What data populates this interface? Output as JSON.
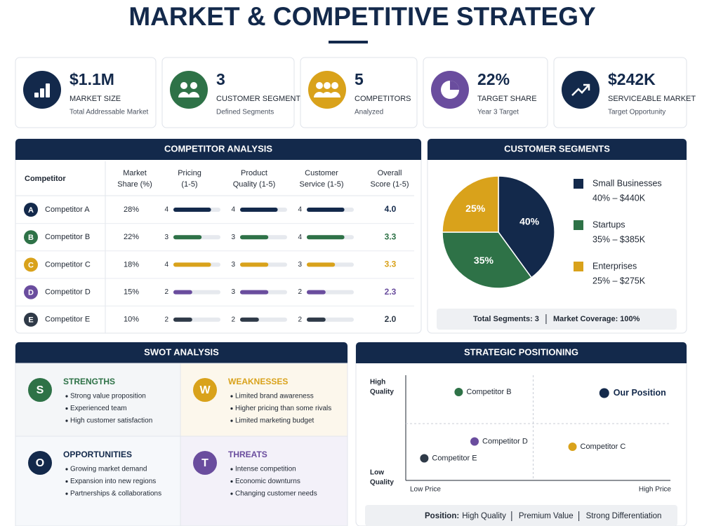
{
  "header": {
    "title": "MARKET & COMPETITIVE STRATEGY"
  },
  "kpis": [
    {
      "value": "$1.1M",
      "label": "MARKET SIZE",
      "sub": "Total Addressable Market",
      "color": "#13294b"
    },
    {
      "value": "3",
      "label": "CUSTOMER SEGMENTS",
      "sub": "Defined Segments",
      "color": "#2e7247"
    },
    {
      "value": "5",
      "label": "COMPETITORS",
      "sub": "Analyzed",
      "color": "#d9a21b"
    },
    {
      "value": "22%",
      "label": "TARGET SHARE",
      "sub": "Year 3 Target",
      "color": "#6a4d9e"
    },
    {
      "value": "$242K",
      "label": "SERVICEABLE MARKET",
      "sub": "Target Opportunity",
      "color": "#13294b"
    }
  ],
  "competitor_analysis": {
    "title": "COMPETITOR ANALYSIS",
    "columns": [
      [
        "Competitor"
      ],
      [
        "Market",
        "Share (%)"
      ],
      [
        "Pricing",
        "(1-5)"
      ],
      [
        "Product",
        "Quality (1-5)"
      ],
      [
        "Customer",
        "Service (1-5)"
      ],
      [
        "Overall",
        "Score (1-5)"
      ]
    ],
    "rating_range": [
      0,
      5
    ],
    "rows": [
      {
        "badge": "A",
        "name": "Competitor A",
        "share": "28%",
        "ratings": [
          4,
          4,
          4
        ],
        "overall": "4.0",
        "color": "#13294b"
      },
      {
        "badge": "B",
        "name": "Competitor B",
        "share": "22%",
        "ratings": [
          3,
          3,
          4
        ],
        "overall": "3.3",
        "color": "#2e7247"
      },
      {
        "badge": "C",
        "name": "Competitor C",
        "share": "18%",
        "ratings": [
          4,
          3,
          3
        ],
        "overall": "3.3",
        "color": "#d9a21b"
      },
      {
        "badge": "D",
        "name": "Competitor D",
        "share": "15%",
        "ratings": [
          2,
          3,
          2
        ],
        "overall": "2.3",
        "color": "#6a4d9e"
      },
      {
        "badge": "E",
        "name": "Competitor E",
        "share": "10%",
        "ratings": [
          2,
          2,
          2
        ],
        "overall": "2.0",
        "color": "#2f3a48"
      }
    ]
  },
  "customer_segments": {
    "title": "CUSTOMER SEGMENTS",
    "slices": [
      {
        "name": "Small Businesses",
        "value": 40,
        "value_label": "40%",
        "detail": "40% – $440K",
        "color": "#13294b"
      },
      {
        "name": "Startups",
        "value": 35,
        "value_label": "35%",
        "detail": "35% – $385K",
        "color": "#2e7247"
      },
      {
        "name": "Enterprises",
        "value": 25,
        "value_label": "25%",
        "detail": "25% – $275K",
        "color": "#d9a21b"
      }
    ],
    "footer": [
      "Total Segments: 3",
      "Market Coverage: 100%"
    ]
  },
  "swot": {
    "title": "SWOT ANALYSIS",
    "quadrants": [
      {
        "letter": "S",
        "title": "STRENGTHS",
        "items": [
          "Strong value proposition",
          "Experienced team",
          "High customer satisfaction"
        ],
        "color": "#2e7247",
        "background": "#f4f6f8"
      },
      {
        "letter": "W",
        "title": "WEAKNESSES",
        "items": [
          "Limited brand awareness",
          "Higher pricing than some rivals",
          "Limited marketing budget"
        ],
        "color": "#d9a21b",
        "background": "#fcf7ec"
      },
      {
        "letter": "O",
        "title": "OPPORTUNITIES",
        "items": [
          "Growing market demand",
          "Expansion into new regions",
          "Partnerships & collaborations"
        ],
        "color": "#13294b",
        "background": "#f6f8fb"
      },
      {
        "letter": "T",
        "title": "THREATS",
        "items": [
          "Intense competition",
          "Economic downturns",
          "Changing customer needs"
        ],
        "color": "#6a4d9e",
        "background": "#f3f1f9"
      }
    ]
  },
  "positioning": {
    "title": "STRATEGIC POSITIONING",
    "y_labels": {
      "high": [
        "High",
        "Quality"
      ],
      "low": [
        "Low",
        "Quality"
      ]
    },
    "x_labels": {
      "low": "Low Price",
      "high": "High Price"
    },
    "xlim": [
      0,
      10
    ],
    "ylim": [
      0,
      10
    ],
    "points": [
      {
        "name": "Competitor B",
        "x": 2,
        "y": 8.4,
        "color": "#2e7247"
      },
      {
        "name": "Our Position",
        "x": 7.5,
        "y": 8.3,
        "color": "#13294b",
        "highlight": true
      },
      {
        "name": "Competitor D",
        "x": 2.6,
        "y": 3.7,
        "color": "#6a4d9e"
      },
      {
        "name": "Competitor C",
        "x": 6.3,
        "y": 3.2,
        "color": "#d9a21b"
      },
      {
        "name": "Competitor E",
        "x": 0.7,
        "y": 2.1,
        "color": "#2f3a48"
      }
    ],
    "footer": {
      "label": "Position:",
      "items": [
        "High Quality",
        "Premium Value",
        "Strong Differentiation"
      ]
    }
  }
}
